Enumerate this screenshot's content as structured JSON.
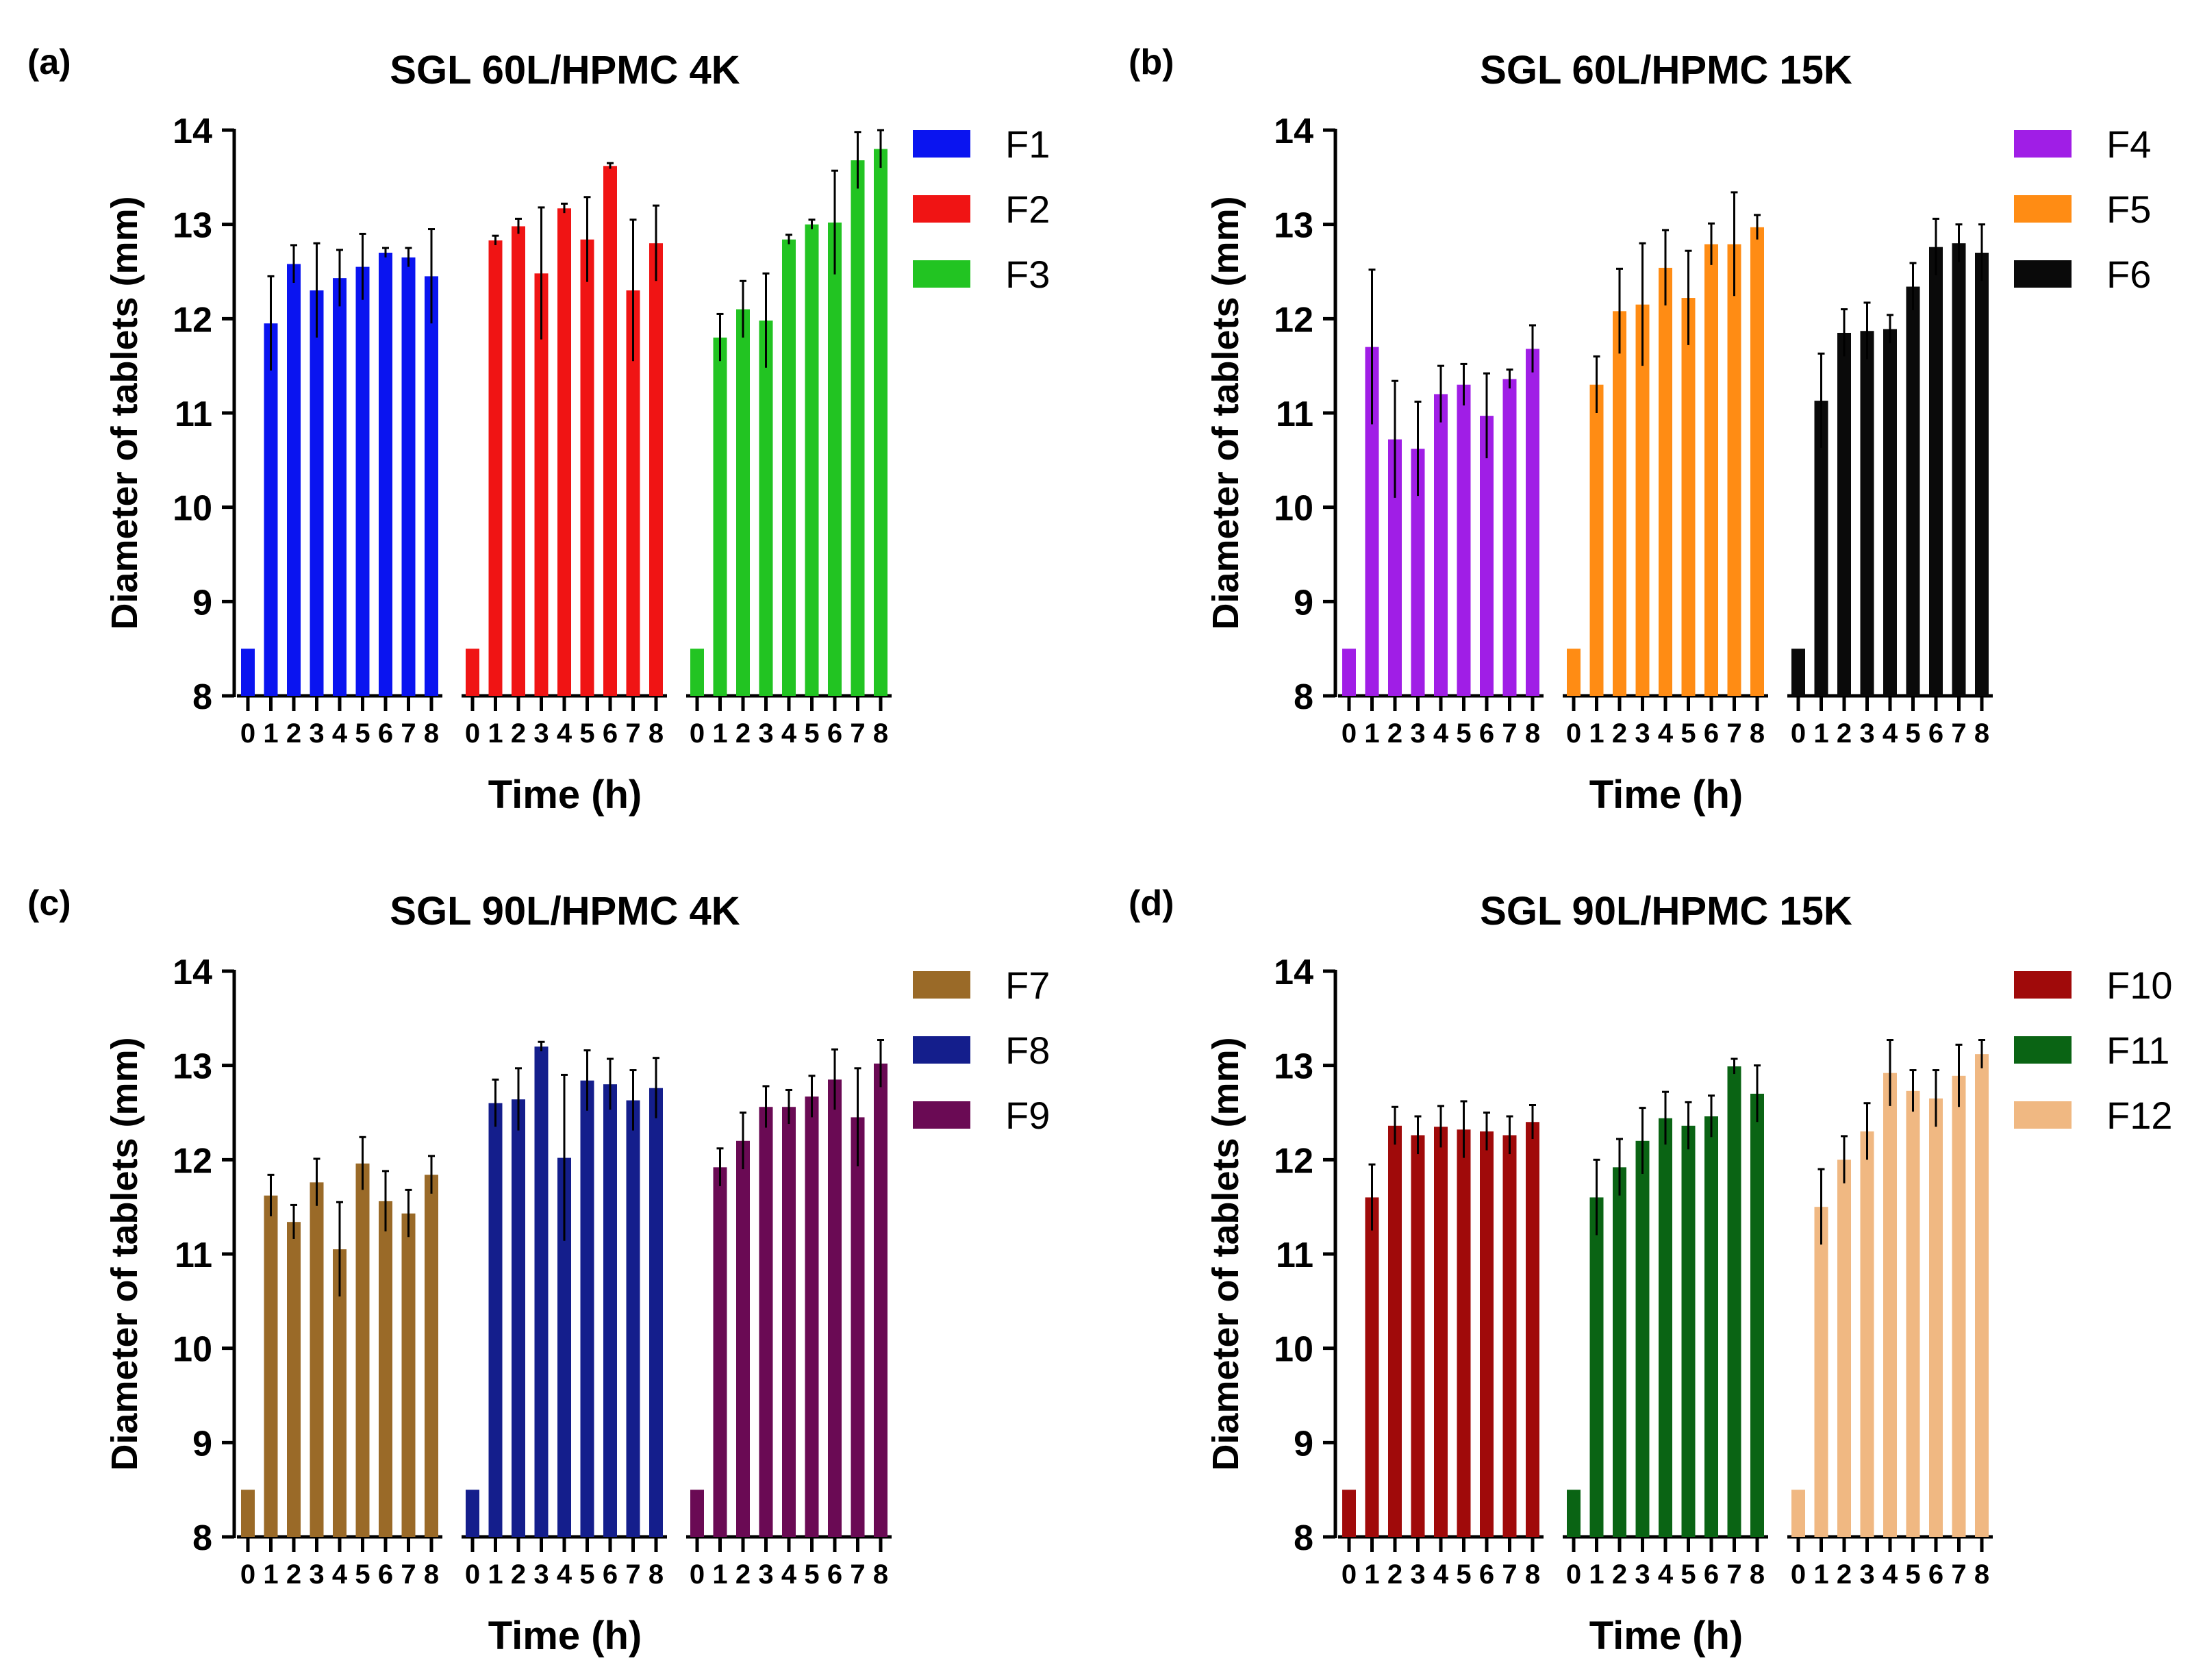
{
  "chart_data": [
    {
      "panel": "(a)",
      "type": "bar",
      "title": "SGL 60L/HPMC 4K",
      "xlabel": "Time (h)",
      "ylabel": "Diameter of tablets (mm)",
      "ylim": [
        8,
        14
      ],
      "yticks": [
        "8",
        "9",
        "10",
        "11",
        "12",
        "13",
        "14"
      ],
      "categories": [
        "0",
        "1",
        "2",
        "3",
        "4",
        "5",
        "6",
        "7",
        "8"
      ],
      "legend_position": "top-right",
      "series": [
        {
          "name": "F1",
          "color": "#0a14f0",
          "values": [
            8.5,
            11.95,
            12.58,
            12.3,
            12.43,
            12.55,
            12.7,
            12.65,
            12.45
          ],
          "errors": [
            0,
            0.5,
            0.2,
            0.5,
            0.3,
            0.35,
            0.05,
            0.1,
            0.5
          ]
        },
        {
          "name": "F2",
          "color": "#f01414",
          "values": [
            8.5,
            12.83,
            12.98,
            12.48,
            13.17,
            12.84,
            13.62,
            12.3,
            12.8
          ],
          "errors": [
            0,
            0.05,
            0.08,
            0.7,
            0.05,
            0.45,
            0.03,
            0.75,
            0.4
          ]
        },
        {
          "name": "F3",
          "color": "#22c422",
          "values": [
            8.5,
            11.8,
            12.1,
            11.98,
            12.84,
            13.0,
            13.02,
            13.68,
            13.8
          ],
          "errors": [
            0,
            0.25,
            0.3,
            0.5,
            0.05,
            0.05,
            0.55,
            0.3,
            0.2
          ]
        }
      ]
    },
    {
      "panel": "(b)",
      "type": "bar",
      "title": "SGL 60L/HPMC 15K",
      "xlabel": "Time (h)",
      "ylabel": "Diameter of tablets (mm)",
      "ylim": [
        8,
        14
      ],
      "yticks": [
        "8",
        "9",
        "10",
        "11",
        "12",
        "13",
        "14"
      ],
      "categories": [
        "0",
        "1",
        "2",
        "3",
        "4",
        "5",
        "6",
        "7",
        "8"
      ],
      "legend_position": "top-right",
      "series": [
        {
          "name": "F4",
          "color": "#a01ee6",
          "values": [
            8.5,
            11.7,
            10.72,
            10.62,
            11.2,
            11.3,
            10.97,
            11.36,
            11.68
          ],
          "errors": [
            0,
            0.82,
            0.62,
            0.5,
            0.3,
            0.22,
            0.45,
            0.1,
            0.25
          ]
        },
        {
          "name": "F5",
          "color": "#ff8c14",
          "values": [
            8.5,
            11.3,
            12.08,
            12.15,
            12.54,
            12.22,
            12.79,
            12.79,
            12.97
          ],
          "errors": [
            0,
            0.3,
            0.45,
            0.65,
            0.4,
            0.5,
            0.22,
            0.55,
            0.13
          ]
        },
        {
          "name": "F6",
          "color": "#0a0a0a",
          "values": [
            8.5,
            11.13,
            11.85,
            11.87,
            11.89,
            12.34,
            12.76,
            12.8,
            12.7
          ],
          "errors": [
            0,
            0.5,
            0.25,
            0.3,
            0.15,
            0.25,
            0.3,
            0.2,
            0.3
          ]
        }
      ]
    },
    {
      "panel": "(c)",
      "type": "bar",
      "title": "SGL 90L/HPMC 4K",
      "xlabel": "Time (h)",
      "ylabel": "Diameter of tablets (mm)",
      "ylim": [
        8,
        14
      ],
      "yticks": [
        "8",
        "9",
        "10",
        "11",
        "12",
        "13",
        "14"
      ],
      "categories": [
        "0",
        "1",
        "2",
        "3",
        "4",
        "5",
        "6",
        "7",
        "8"
      ],
      "legend_position": "top-right",
      "series": [
        {
          "name": "F7",
          "color": "#9a6a28",
          "values": [
            8.5,
            11.62,
            11.34,
            11.76,
            11.05,
            11.96,
            11.56,
            11.43,
            11.84
          ],
          "errors": [
            0,
            0.22,
            0.18,
            0.25,
            0.5,
            0.28,
            0.32,
            0.25,
            0.2
          ]
        },
        {
          "name": "F8",
          "color": "#141e8c",
          "values": [
            8.5,
            12.6,
            12.64,
            13.2,
            12.02,
            12.84,
            12.8,
            12.63,
            12.76
          ],
          "errors": [
            0,
            0.25,
            0.33,
            0.05,
            0.88,
            0.32,
            0.27,
            0.32,
            0.32
          ]
        },
        {
          "name": "F9",
          "color": "#6a0a54",
          "values": [
            8.5,
            11.92,
            12.2,
            12.56,
            12.56,
            12.67,
            12.85,
            12.45,
            13.02
          ],
          "errors": [
            0,
            0.2,
            0.3,
            0.22,
            0.18,
            0.22,
            0.32,
            0.52,
            0.25
          ]
        }
      ]
    },
    {
      "panel": "(d)",
      "type": "bar",
      "title": "SGL 90L/HPMC 15K",
      "xlabel": "Time (h)",
      "ylabel": "Diameter of tablets (mm)",
      "ylim": [
        8,
        14
      ],
      "yticks": [
        "8",
        "9",
        "10",
        "11",
        "12",
        "13",
        "14"
      ],
      "categories": [
        "0",
        "1",
        "2",
        "3",
        "4",
        "5",
        "6",
        "7",
        "8"
      ],
      "legend_position": "top-right",
      "series": [
        {
          "name": "F10",
          "color": "#a00a0a",
          "values": [
            8.5,
            11.6,
            12.36,
            12.26,
            12.35,
            12.32,
            12.3,
            12.26,
            12.4
          ],
          "errors": [
            0,
            0.35,
            0.2,
            0.2,
            0.22,
            0.3,
            0.2,
            0.2,
            0.18
          ]
        },
        {
          "name": "F11",
          "color": "#0a6414",
          "values": [
            8.5,
            11.6,
            11.92,
            12.2,
            12.44,
            12.36,
            12.46,
            12.99,
            12.7
          ],
          "errors": [
            0,
            0.4,
            0.3,
            0.35,
            0.28,
            0.25,
            0.22,
            0.08,
            0.3
          ]
        },
        {
          "name": "F12",
          "color": "#f0b882",
          "values": [
            8.5,
            11.5,
            12.0,
            12.3,
            12.92,
            12.73,
            12.65,
            12.89,
            13.12
          ],
          "errors": [
            0,
            0.4,
            0.25,
            0.3,
            0.35,
            0.22,
            0.3,
            0.33,
            0.15
          ]
        }
      ]
    }
  ]
}
